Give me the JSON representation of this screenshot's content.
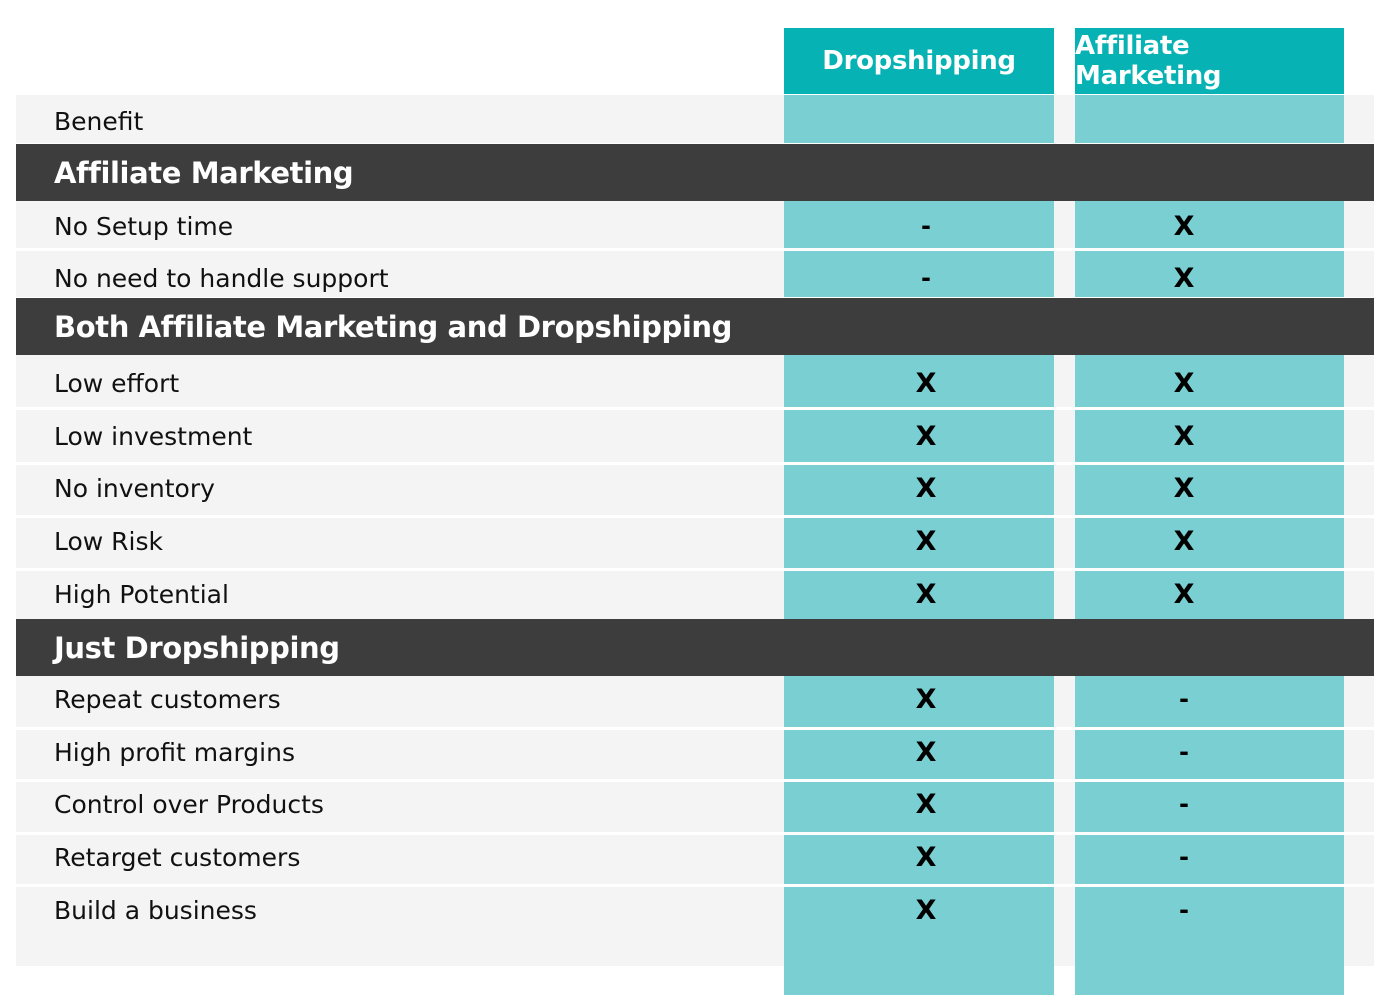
{
  "columns": [
    "Dropshipping",
    "Affiliate Marketing"
  ],
  "header_label": "Benefit",
  "sections": [
    {
      "title": "Affiliate Marketing",
      "rows": [
        {
          "label": "No Setup time",
          "dropshipping": "-",
          "affiliate": "X"
        },
        {
          "label": "No need to handle support",
          "dropshipping": "-",
          "affiliate": "X"
        }
      ]
    },
    {
      "title": "Both Affiliate Marketing and Dropshipping",
      "rows": [
        {
          "label": "Low effort",
          "dropshipping": "X",
          "affiliate": "X"
        },
        {
          "label": "Low investment",
          "dropshipping": "X",
          "affiliate": "X"
        },
        {
          "label": "No inventory",
          "dropshipping": "X",
          "affiliate": "X"
        },
        {
          "label": "Low Risk",
          "dropshipping": "X",
          "affiliate": "X"
        },
        {
          "label": "High Potential",
          "dropshipping": "X",
          "affiliate": "X"
        }
      ]
    },
    {
      "title": "Just Dropshipping",
      "rows": [
        {
          "label": "Repeat customers",
          "dropshipping": "X",
          "affiliate": "-"
        },
        {
          "label": "High profit margins",
          "dropshipping": "X",
          "affiliate": "-"
        },
        {
          "label": "Control over Products",
          "dropshipping": "X",
          "affiliate": "-"
        },
        {
          "label": "Retarget customers",
          "dropshipping": "X",
          "affiliate": "-"
        },
        {
          "label": "Build a business",
          "dropshipping": "X",
          "affiliate": "-"
        }
      ]
    }
  ],
  "colors": {
    "header_teal": "#07b2b4",
    "column_teal": "#7acfd3",
    "section_dark": "#3d3d3d",
    "row_light": "#f4f4f4"
  },
  "chart_data": {
    "type": "table",
    "columns": [
      "Benefit",
      "Dropshipping",
      "Affiliate Marketing"
    ],
    "groups": [
      {
        "name": "Affiliate Marketing",
        "rows": [
          [
            "No Setup time",
            "-",
            "X"
          ],
          [
            "No need to handle support",
            "-",
            "X"
          ]
        ]
      },
      {
        "name": "Both Affiliate Marketing and Dropshipping",
        "rows": [
          [
            "Low effort",
            "X",
            "X"
          ],
          [
            "Low investment",
            "X",
            "X"
          ],
          [
            "No inventory",
            "X",
            "X"
          ],
          [
            "Low Risk",
            "X",
            "X"
          ],
          [
            "High Potential",
            "X",
            "X"
          ]
        ]
      },
      {
        "name": "Just Dropshipping",
        "rows": [
          [
            "Repeat customers",
            "X",
            "-"
          ],
          [
            "High profit margins",
            "X",
            "-"
          ],
          [
            "Control over Products",
            "X",
            "-"
          ],
          [
            "Retarget customers",
            "X",
            "-"
          ],
          [
            "Build a business",
            "X",
            "-"
          ]
        ]
      }
    ]
  }
}
